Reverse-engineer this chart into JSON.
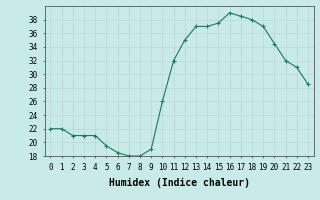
{
  "xlabel": "Humidex (Indice chaleur)",
  "x": [
    0,
    1,
    2,
    3,
    4,
    5,
    6,
    7,
    8,
    9,
    10,
    11,
    12,
    13,
    14,
    15,
    16,
    17,
    18,
    19,
    20,
    21,
    22,
    23
  ],
  "y": [
    22,
    22,
    21,
    21,
    21,
    19.5,
    18.5,
    18,
    18,
    19,
    26,
    32,
    35,
    37,
    37,
    37.5,
    39,
    38.5,
    38,
    37,
    34.5,
    32,
    31,
    28.5
  ],
  "ylim": [
    18,
    40
  ],
  "yticks": [
    18,
    20,
    22,
    24,
    26,
    28,
    30,
    32,
    34,
    36,
    38
  ],
  "xticks": [
    0,
    1,
    2,
    3,
    4,
    5,
    6,
    7,
    8,
    9,
    10,
    11,
    12,
    13,
    14,
    15,
    16,
    17,
    18,
    19,
    20,
    21,
    22,
    23
  ],
  "xlim": [
    -0.5,
    23.5
  ],
  "line_color": "#1a7a5e",
  "marker": "+",
  "bg_color": "#c8eae8",
  "grid_color": "#c0d8d8",
  "tick_fontsize": 5.5,
  "xlabel_fontsize": 7
}
